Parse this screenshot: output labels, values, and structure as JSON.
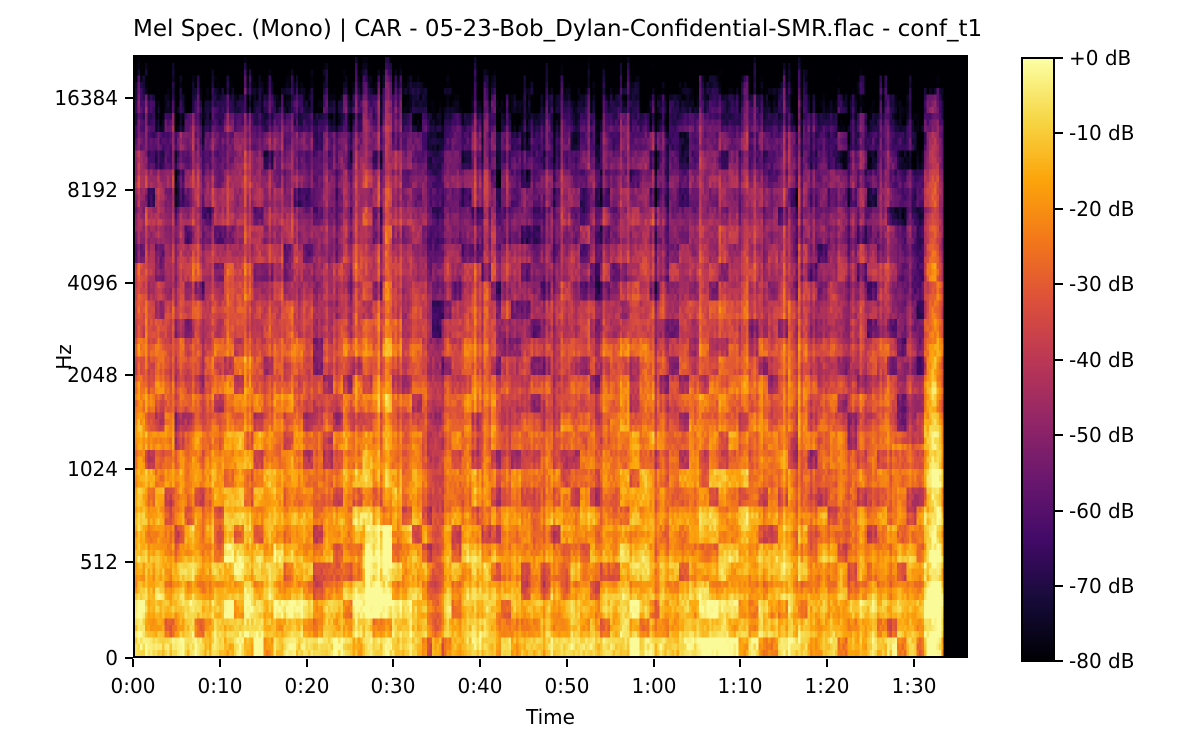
{
  "figure": {
    "background": "#ffffff",
    "text_color": "#000000"
  },
  "chart_data": {
    "type": "heatmap",
    "subtype": "mel_spectrogram",
    "title": "Mel Spec. (Mono) | CAR - 05-23-Bob_Dylan-Confidential-SMR.flac - conf_t1",
    "xlabel": "Time",
    "ylabel": "Hz",
    "x_tick_labels": [
      "0:00",
      "0:10",
      "0:20",
      "0:30",
      "0:40",
      "0:50",
      "1:00",
      "1:10",
      "1:20",
      "1:30"
    ],
    "y_tick_labels": [
      "16384",
      "8192",
      "4096",
      "2048",
      "1024",
      "512",
      "0"
    ],
    "y_scale": "mel",
    "y_max_hz": 22050,
    "x_axis_seconds": [
      0,
      96.2
    ],
    "audio_end_seconds": 93.5,
    "db_range": [
      -80,
      0
    ],
    "grid": false,
    "legend": false,
    "colorbar": {
      "tick_labels": [
        "+0 dB",
        "-10 dB",
        "-20 dB",
        "-30 dB",
        "-40 dB",
        "-50 dB",
        "-60 dB",
        "-70 dB",
        "-80 dB"
      ],
      "colormap": "inferno",
      "position": "right"
    },
    "colormap_stops": [
      {
        "t": 0.0,
        "c": "#000004"
      },
      {
        "t": 0.1,
        "c": "#160b39"
      },
      {
        "t": 0.2,
        "c": "#420a68"
      },
      {
        "t": 0.3,
        "c": "#6a176e"
      },
      {
        "t": 0.4,
        "c": "#932667"
      },
      {
        "t": 0.5,
        "c": "#bc3754"
      },
      {
        "t": 0.6,
        "c": "#dd513a"
      },
      {
        "t": 0.7,
        "c": "#f37819"
      },
      {
        "t": 0.8,
        "c": "#fca50a"
      },
      {
        "t": 0.9,
        "c": "#f6d746"
      },
      {
        "t": 1.0,
        "c": "#fcffa4"
      }
    ],
    "energy_profile": [
      {
        "frac": 0.0,
        "db": -9
      },
      {
        "frac": 0.12,
        "db": -15
      },
      {
        "frac": 0.25,
        "db": -21
      },
      {
        "frac": 0.4,
        "db": -28
      },
      {
        "frac": 0.55,
        "db": -37
      },
      {
        "frac": 0.7,
        "db": -47
      },
      {
        "frac": 0.82,
        "db": -55
      },
      {
        "frac": 0.92,
        "db": -66
      },
      {
        "frac": 1.0,
        "db": -78
      }
    ],
    "features": [
      {
        "name": "bright-patch-500hz",
        "t": [
          26.7,
          29.8
        ],
        "frac": [
          0.08,
          0.22
        ],
        "db_boost": 9
      },
      {
        "name": "quiet-dip",
        "t": [
          33.8,
          35.8
        ],
        "frac": [
          0.0,
          1.0
        ],
        "db_boost": -10
      },
      {
        "name": "hf-fade",
        "t": [
          87.5,
          91.2
        ],
        "frac": [
          0.35,
          1.0
        ],
        "db_boost": -9
      },
      {
        "name": "final-burst",
        "t": [
          91.2,
          93.4
        ],
        "frac": [
          0.0,
          0.95
        ],
        "db_boost": 12
      },
      {
        "name": "silence-tail",
        "t": [
          93.5,
          96.2
        ],
        "frac": [
          0.0,
          1.0
        ],
        "db_boost": -80
      }
    ]
  }
}
